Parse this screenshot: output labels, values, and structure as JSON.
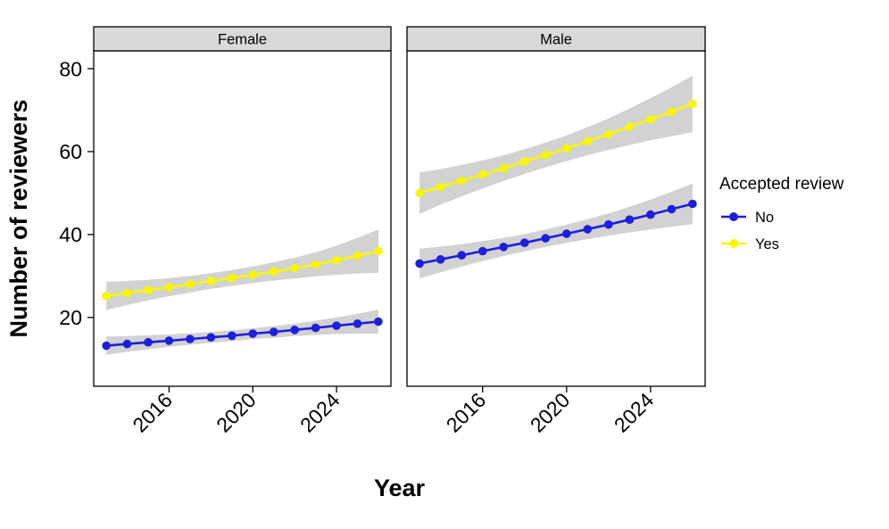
{
  "chart_data": {
    "type": "line",
    "title": "",
    "xlabel": "Year",
    "ylabel": "Number of reviewers",
    "xlim": [
      2012.4,
      2026.6
    ],
    "ylim": [
      3.4,
      84.3
    ],
    "x_ticks": [
      2016,
      2020,
      2024
    ],
    "y_ticks": [
      20,
      40,
      60,
      80
    ],
    "grid": false,
    "ribbon_color": "#d2d2d2",
    "x": [
      2013,
      2014,
      2015,
      2016,
      2017,
      2018,
      2019,
      2020,
      2021,
      2022,
      2023,
      2024,
      2025,
      2026
    ],
    "legend": {
      "title": "Accepted review",
      "position": "right",
      "entries": [
        {
          "label": "No",
          "color": "#1e1ee0"
        },
        {
          "label": "Yes",
          "color": "#f7f700"
        }
      ]
    },
    "facets": [
      {
        "label": "Female",
        "series": [
          {
            "name": "No",
            "color": "#1e1ee0",
            "values": [
              13.2,
              13.6,
              14.0,
              14.4,
              14.8,
              15.2,
              15.6,
              16.1,
              16.5,
              17.0,
              17.5,
              18.0,
              18.5,
              19.0
            ],
            "ci": [
              2.2,
              1.9,
              1.7,
              1.5,
              1.4,
              1.3,
              1.3,
              1.3,
              1.4,
              1.5,
              1.7,
              2.0,
              2.4,
              2.9
            ]
          },
          {
            "name": "Yes",
            "color": "#f7f700",
            "values": [
              25.2,
              25.9,
              26.6,
              27.3,
              28.0,
              28.8,
              29.5,
              30.3,
              31.1,
              31.9,
              32.8,
              33.8,
              34.9,
              36.0
            ],
            "ci": [
              3.4,
              2.9,
              2.5,
              2.2,
              2.0,
              1.9,
              1.9,
              2.0,
              2.2,
              2.5,
              2.9,
              3.5,
              4.3,
              5.2
            ]
          }
        ]
      },
      {
        "label": "Male",
        "series": [
          {
            "name": "No",
            "color": "#1e1ee0",
            "values": [
              33.0,
              34.0,
              35.0,
              36.0,
              37.0,
              38.0,
              39.1,
              40.2,
              41.3,
              42.4,
              43.6,
              44.8,
              46.1,
              47.4
            ],
            "ci": [
              3.6,
              3.1,
              2.7,
              2.4,
              2.2,
              2.1,
              2.1,
              2.2,
              2.4,
              2.7,
              3.1,
              3.6,
              4.2,
              4.9
            ]
          },
          {
            "name": "Yes",
            "color": "#f7f700",
            "values": [
              50.0,
              51.5,
              53.0,
              54.5,
              56.0,
              57.6,
              59.2,
              60.8,
              62.5,
              64.2,
              66.0,
              67.8,
              69.6,
              71.5
            ],
            "ci": [
              5.0,
              4.3,
              3.8,
              3.4,
              3.1,
              3.0,
              3.0,
              3.1,
              3.4,
              3.8,
              4.4,
              5.1,
              5.9,
              6.8
            ]
          }
        ]
      }
    ],
    "style": {
      "panel_border": "#000000",
      "strip_bg": "#d9d9d9",
      "text_color": "#000000"
    }
  }
}
